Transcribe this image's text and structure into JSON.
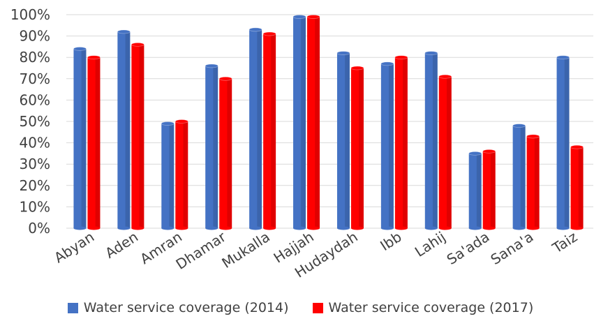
{
  "chart_data": {
    "type": "bar",
    "categories": [
      "Abyan",
      "Aden",
      "Amran",
      "Dhamar",
      "Mukalla",
      "Hajjah",
      "Hudaydah",
      "Ibb",
      "Lahij",
      "Sa'ada",
      "Sana'a",
      "Taiz"
    ],
    "series": [
      {
        "name": "Water service coverage (2014)",
        "color": "#4472C4",
        "values": [
          84,
          92,
          49,
          76,
          93,
          99,
          82,
          77,
          82,
          35,
          48,
          80
        ]
      },
      {
        "name": "Water service coverage (2017)",
        "color": "#FF0000",
        "values": [
          80,
          86,
          50,
          70,
          91,
          99,
          75,
          80,
          71,
          36,
          43,
          38
        ]
      }
    ],
    "yticks": [
      "0%",
      "10%",
      "20%",
      "30%",
      "40%",
      "50%",
      "60%",
      "70%",
      "80%",
      "90%",
      "100%"
    ],
    "ylim": [
      0,
      100
    ],
    "grid": true,
    "legend_position": "bottom"
  }
}
